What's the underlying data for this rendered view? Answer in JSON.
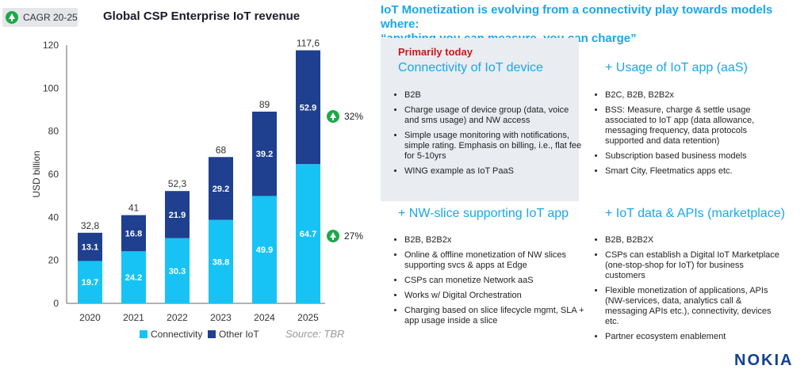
{
  "cagr_label": "CAGR 20-25",
  "chart_title": "Global CSP Enterprise IoT revenue",
  "headline": {
    "line1": "IoT Monetization is evolving from a connectivity play towards models where:",
    "line2": "“anything you can measure, you can charge”"
  },
  "primarily_today": "Primarily today",
  "quadrants": [
    {
      "title": "Connectivity of IoT device",
      "items": [
        "B2B",
        "Charge usage of device group (data, voice and sms usage) and NW access",
        "Simple usage monitoring with notifications, simple rating. Emphasis on billing, i.e., flat fee for 5-10yrs",
        "WING example as IoT PaaS"
      ]
    },
    {
      "title": "+ Usage of IoT app (aaS)",
      "items": [
        "B2C, B2B, B2B2x",
        "BSS: Measure, charge & settle usage associated to IoT app (data allowance, messaging frequency, data protocols supported and data retention)",
        "Subscription based business models",
        "Smart City, Fleetmatics apps etc."
      ]
    },
    {
      "title": "+ NW-slice supporting IoT app",
      "items": [
        "B2B, B2B2x",
        "Online & offline monetization of NW slices supporting svcs & apps at Edge",
        "CSPs can monetize Network aaS",
        "Works w/ Digital Orchestration",
        "Charging based on slice lifecycle mgmt, SLA + app usage inside a slice"
      ]
    },
    {
      "title": "+ IoT data & APIs (marketplace)",
      "items": [
        "B2B, B2B2X",
        "CSPs can establish a Digital IoT Marketplace (one-stop-shop for IoT) for business customers",
        "Flexible monetization of applications, APIs (NW-services, data, analytics call & messaging APIs etc.), connectivity, devices etc.",
        "Partner ecosystem enablement"
      ]
    }
  ],
  "source": "Source: TBR",
  "logo_text": "NOKIA",
  "colors": {
    "connectivity": "#17c3f5",
    "other_iot": "#1f3f8f",
    "accent": "#1aa7e8",
    "growth": "#1ea84a",
    "logo": "#124191"
  },
  "chart_data": {
    "type": "bar",
    "stacked": true,
    "categories": [
      "2020",
      "2021",
      "2022",
      "2023",
      "2024",
      "2025"
    ],
    "series": [
      {
        "name": "Connectivity",
        "values": [
          19.7,
          24.2,
          30.3,
          38.8,
          49.9,
          64.7
        ],
        "labels": [
          "19.7",
          "24.2",
          "30.3",
          "38.8",
          "49.9",
          "64.7"
        ]
      },
      {
        "name": "Other IoT",
        "values": [
          13.1,
          16.8,
          21.9,
          29.2,
          39.2,
          52.9
        ],
        "labels": [
          "13.1",
          "16.8",
          "21.9",
          "29.2",
          "39.2",
          "52.9"
        ]
      }
    ],
    "totals": [
      "32,8",
      "41",
      "52,3",
      "68",
      "89",
      "117,6"
    ],
    "ylabel": "USD billion",
    "ylim": [
      0,
      120
    ],
    "yticks": [
      0,
      20,
      40,
      60,
      80,
      100,
      120
    ],
    "growth": [
      {
        "series": "Other IoT",
        "label": "32%"
      },
      {
        "series": "Connectivity",
        "label": "27%"
      }
    ]
  }
}
